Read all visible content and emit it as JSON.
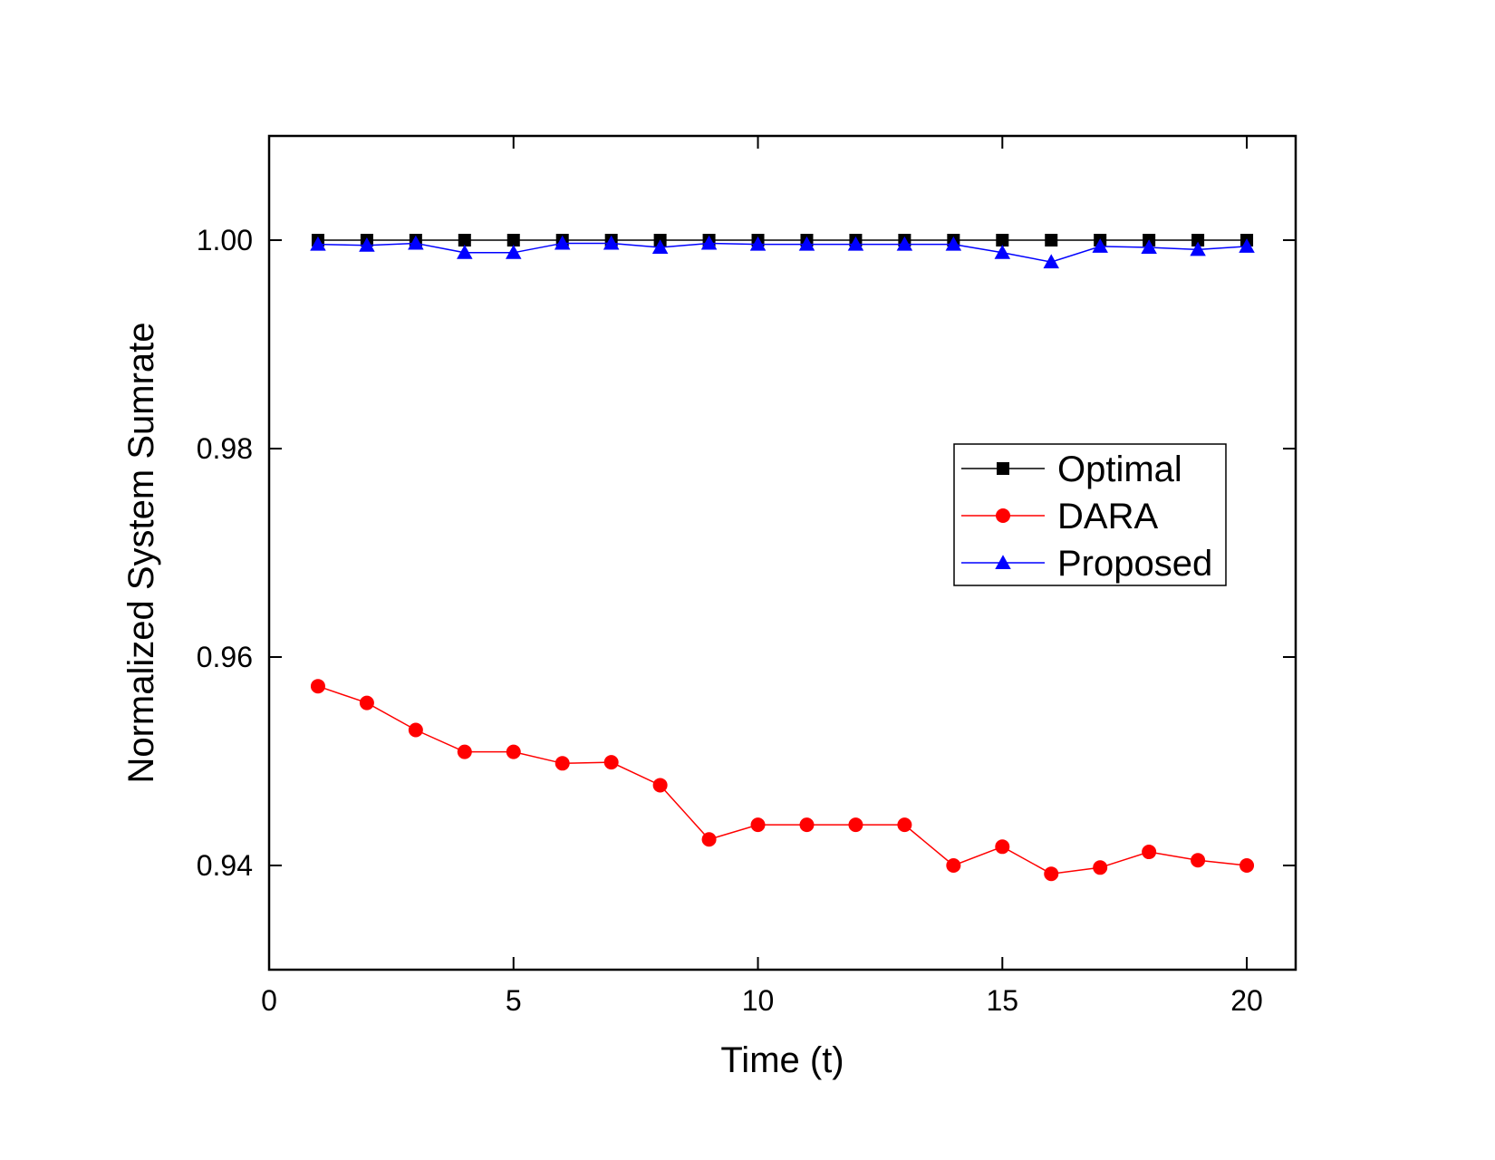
{
  "chart_data": {
    "type": "line",
    "title": "",
    "xlabel": "Time (t)",
    "ylabel": "Normalized System Sumrate",
    "xlim": [
      0,
      21
    ],
    "ylim": [
      0.93,
      1.01
    ],
    "xticks": [
      0,
      5,
      10,
      15,
      20
    ],
    "xtick_labels": [
      "0",
      "5",
      "10",
      "15",
      "20"
    ],
    "yticks": [
      0.94,
      0.96,
      0.98,
      1.0
    ],
    "ytick_labels": [
      "0.94",
      "0.96",
      "0.98",
      "1.00"
    ],
    "grid": false,
    "legend_position": "center-right",
    "x": [
      1,
      2,
      3,
      4,
      5,
      6,
      7,
      8,
      9,
      10,
      11,
      12,
      13,
      14,
      15,
      16,
      17,
      18,
      19,
      20
    ],
    "series": [
      {
        "name": "Optimal",
        "color": "#000000",
        "marker": "square",
        "values": [
          1.0,
          1.0,
          1.0,
          1.0,
          1.0,
          1.0,
          1.0,
          1.0,
          1.0,
          1.0,
          1.0,
          1.0,
          1.0,
          1.0,
          1.0,
          1.0,
          1.0,
          1.0,
          1.0,
          1.0
        ]
      },
      {
        "name": "DARA",
        "color": "#ff0000",
        "marker": "circle",
        "values": [
          0.9572,
          0.9556,
          0.953,
          0.9509,
          0.9509,
          0.9498,
          0.9499,
          0.9477,
          0.9425,
          0.9439,
          0.9439,
          0.9439,
          0.9439,
          0.94,
          0.9418,
          0.9392,
          0.9398,
          0.9413,
          0.9405,
          0.94
        ]
      },
      {
        "name": "Proposed",
        "color": "#0000ff",
        "marker": "triangle",
        "values": [
          0.9996,
          0.9995,
          0.9997,
          0.9988,
          0.9988,
          0.9997,
          0.9997,
          0.9993,
          0.9997,
          0.9996,
          0.9996,
          0.9996,
          0.9996,
          0.9996,
          0.9988,
          0.9979,
          0.9994,
          0.9993,
          0.9991,
          0.9994
        ]
      }
    ]
  }
}
